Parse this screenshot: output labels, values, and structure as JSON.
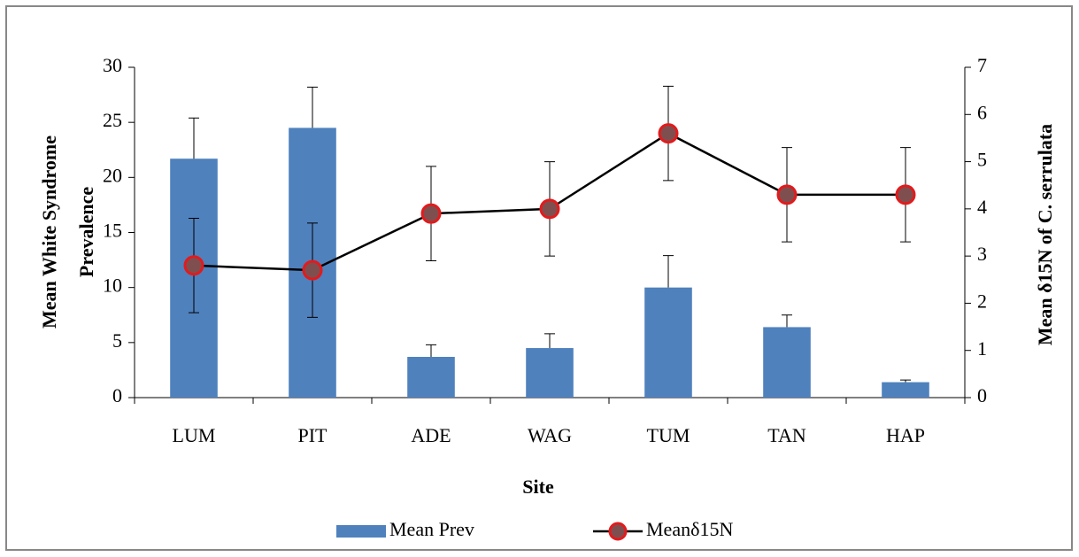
{
  "chart_data": {
    "type": "bar-line",
    "categories": [
      "LUM",
      "PIT",
      "ADE",
      "WAG",
      "TUM",
      "TAN",
      "HAP"
    ],
    "series": [
      {
        "name": "Mean Prev",
        "type": "bar",
        "color": "#4f81bd",
        "values": [
          21.7,
          24.5,
          3.7,
          4.5,
          10,
          6.4,
          1.4
        ],
        "errors": [
          3.7,
          3.7,
          1.1,
          1.3,
          2.9,
          1.1,
          0.2
        ]
      },
      {
        "name": "Meanδ15N",
        "type": "line",
        "axis": "y2",
        "color": "#000000",
        "marker_color": "#e31a1c",
        "values": [
          2.8,
          2.7,
          3.9,
          4.0,
          5.6,
          4.3,
          4.3
        ],
        "errors": [
          1.0,
          1.0,
          1.0,
          1.0,
          1.0,
          1.0,
          1.0
        ]
      }
    ],
    "ylabel": [
      "Mean White Syndrome",
      "Prevalence"
    ],
    "y2label": "Mean δ15N of C. serrulata",
    "xlabel": "Site",
    "ylim": [
      0,
      30
    ],
    "yticks": [
      0,
      5,
      10,
      15,
      20,
      25,
      30
    ],
    "y2lim": [
      0,
      7
    ],
    "y2ticks": [
      0,
      1,
      2,
      3,
      4,
      5,
      6,
      7
    ],
    "legend": "bottom"
  }
}
